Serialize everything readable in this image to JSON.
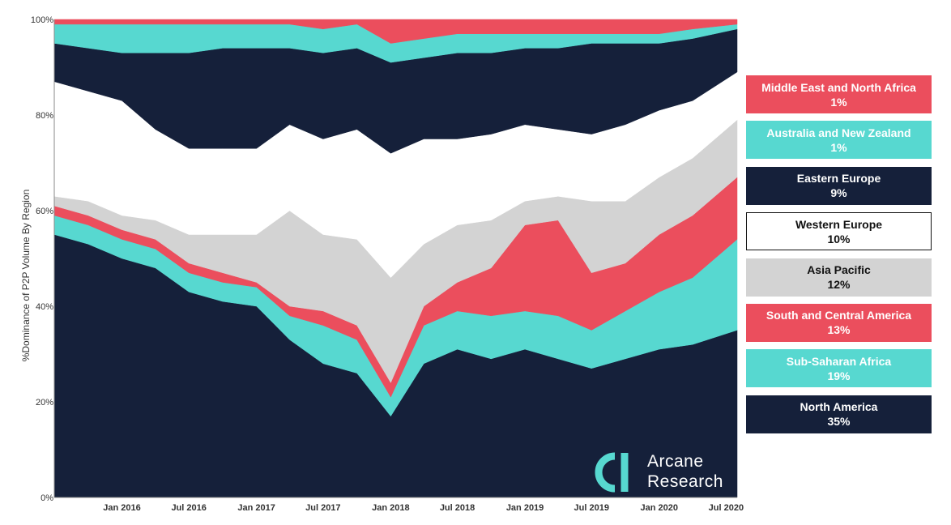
{
  "chart_data": {
    "type": "area",
    "stacked": true,
    "normalized_percent": true,
    "title": "",
    "xlabel": "",
    "ylabel": "%Dominance of P2P Volume By Region",
    "ylim": [
      0,
      100
    ],
    "yticks": [
      0,
      20,
      40,
      60,
      80,
      100
    ],
    "ytick_labels": [
      "0%",
      "20%",
      "40%",
      "60%",
      "80%",
      "100%"
    ],
    "xlim": [
      "2015-07-01",
      "2020-07-31"
    ],
    "xticks": [
      "2016-01-01",
      "2016-07-01",
      "2017-01-01",
      "2017-07-01",
      "2018-01-01",
      "2018-07-01",
      "2019-01-01",
      "2019-07-01",
      "2020-01-01",
      "2020-07-01"
    ],
    "xtick_labels": [
      "Jan 2016",
      "Jul 2016",
      "Jan 2017",
      "Jul 2017",
      "Jan 2018",
      "Jul 2018",
      "Jan 2019",
      "Jul 2019",
      "Jan 2020",
      "Jul 2020"
    ],
    "grid": false,
    "legend_position": "right",
    "x": [
      "2015-07",
      "2015-10",
      "2016-01",
      "2016-04",
      "2016-07",
      "2016-10",
      "2017-01",
      "2017-04",
      "2017-07",
      "2017-10",
      "2018-01",
      "2018-04",
      "2018-07",
      "2018-10",
      "2019-01",
      "2019-04",
      "2019-07",
      "2019-10",
      "2020-01",
      "2020-04",
      "2020-07"
    ],
    "series": [
      {
        "name": "North America",
        "percent_label": "35%",
        "color": "#15203a",
        "values": [
          55,
          53,
          50,
          48,
          43,
          41,
          40,
          33,
          28,
          26,
          17,
          28,
          31,
          29,
          31,
          29,
          27,
          29,
          31,
          32,
          35
        ]
      },
      {
        "name": "Sub-Saharan Africa",
        "percent_label": "19%",
        "color": "#57d8d0",
        "values": [
          4,
          4,
          4,
          4,
          4,
          4,
          4,
          5,
          8,
          7,
          4,
          8,
          8,
          9,
          8,
          9,
          8,
          10,
          12,
          14,
          19
        ]
      },
      {
        "name": "South and Central America",
        "percent_label": "13%",
        "color": "#eb4e5d",
        "values": [
          2,
          2,
          2,
          2,
          2,
          2,
          1,
          2,
          3,
          3,
          3,
          4,
          6,
          10,
          18,
          20,
          12,
          10,
          12,
          13,
          13
        ]
      },
      {
        "name": "Asia Pacific",
        "percent_label": "12%",
        "color": "#d3d3d3",
        "values": [
          2,
          3,
          3,
          4,
          6,
          8,
          10,
          20,
          16,
          18,
          22,
          13,
          12,
          10,
          5,
          5,
          15,
          13,
          12,
          12,
          12
        ]
      },
      {
        "name": "Western Europe",
        "percent_label": "10%",
        "color": "#ffffff",
        "values": [
          24,
          23,
          24,
          19,
          18,
          18,
          18,
          18,
          20,
          23,
          26,
          22,
          18,
          18,
          16,
          14,
          14,
          16,
          14,
          12,
          10
        ]
      },
      {
        "name": "Eastern Europe",
        "percent_label": "9%",
        "color": "#15203a",
        "values": [
          8,
          9,
          10,
          16,
          20,
          21,
          21,
          16,
          18,
          17,
          19,
          17,
          18,
          17,
          16,
          17,
          19,
          17,
          14,
          13,
          9
        ]
      },
      {
        "name": "Australia and New Zealand",
        "percent_label": "1%",
        "color": "#57d8d0",
        "values": [
          4,
          5,
          6,
          6,
          6,
          5,
          5,
          5,
          5,
          5,
          4,
          4,
          4,
          4,
          3,
          3,
          2,
          2,
          2,
          2,
          1
        ]
      },
      {
        "name": "Middle East and North Africa",
        "percent_label": "1%",
        "color": "#eb4e5d",
        "values": [
          1,
          1,
          1,
          1,
          1,
          1,
          1,
          1,
          2,
          1,
          5,
          4,
          3,
          3,
          3,
          3,
          3,
          3,
          3,
          2,
          1
        ]
      }
    ],
    "legend_order": [
      "Middle East and North Africa",
      "Australia and New Zealand",
      "Eastern Europe",
      "Western Europe",
      "Asia Pacific",
      "South and Central America",
      "Sub-Saharan Africa",
      "North America"
    ]
  },
  "logo": {
    "icon": "arcane-logo-icon",
    "line1": "Arcane",
    "line2": "Research",
    "icon_color": "#57d8d0"
  }
}
